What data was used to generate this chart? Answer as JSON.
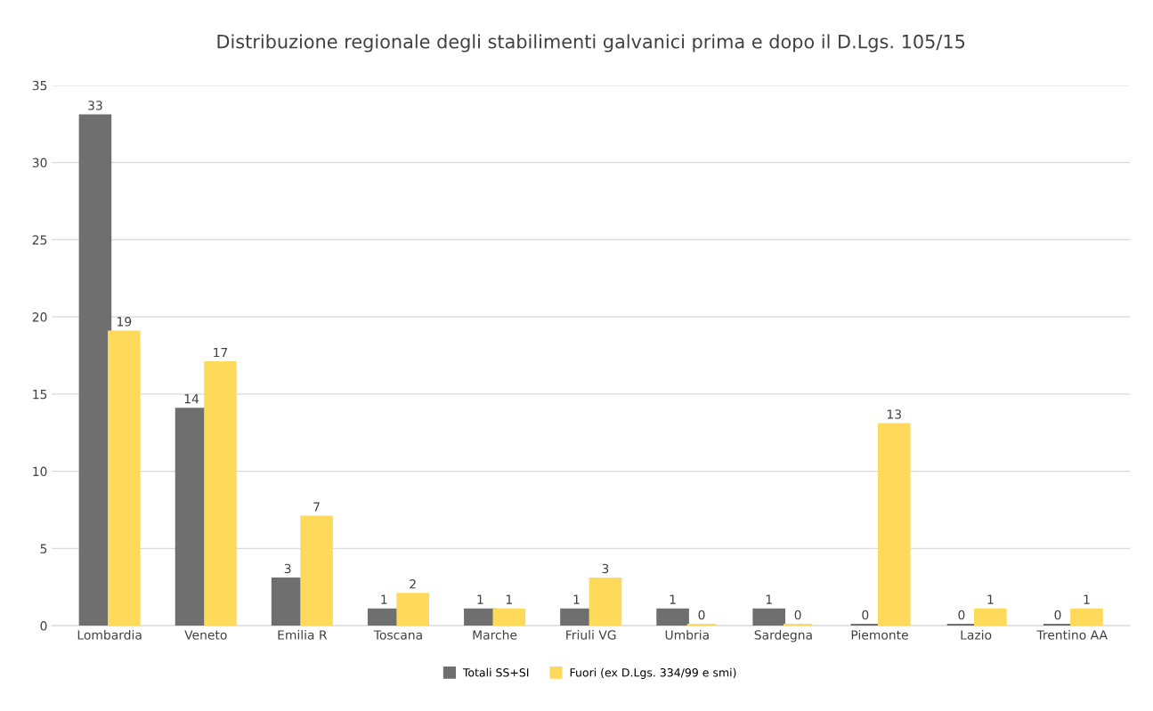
{
  "chart_data": {
    "type": "bar",
    "title": "Distribuzione regionale degli stabilimenti galvanici prima e dopo il D.Lgs. 105/15",
    "categories": [
      "Lombardia",
      "Veneto",
      "Emilia R",
      "Toscana",
      "Marche",
      "Friuli VG",
      "Umbria",
      "Sardegna",
      "Piemonte",
      "Lazio",
      "Trentino AA"
    ],
    "series": [
      {
        "name": "Totali SS+SI",
        "color": "#6f6f6f",
        "values": [
          33,
          14,
          3,
          1,
          1,
          1,
          1,
          1,
          0,
          0,
          0
        ]
      },
      {
        "name": "Fuori (ex D.Lgs. 334/99 e smi)",
        "color": "#ffd95a",
        "values": [
          19,
          17,
          7,
          2,
          1,
          3,
          0,
          0,
          13,
          1,
          1
        ]
      }
    ],
    "ylim": [
      0,
      35
    ],
    "yticks": [
      0,
      5,
      10,
      15,
      20,
      25,
      30,
      35
    ],
    "grid": "y",
    "legend": "bottom",
    "data_labels": true
  }
}
